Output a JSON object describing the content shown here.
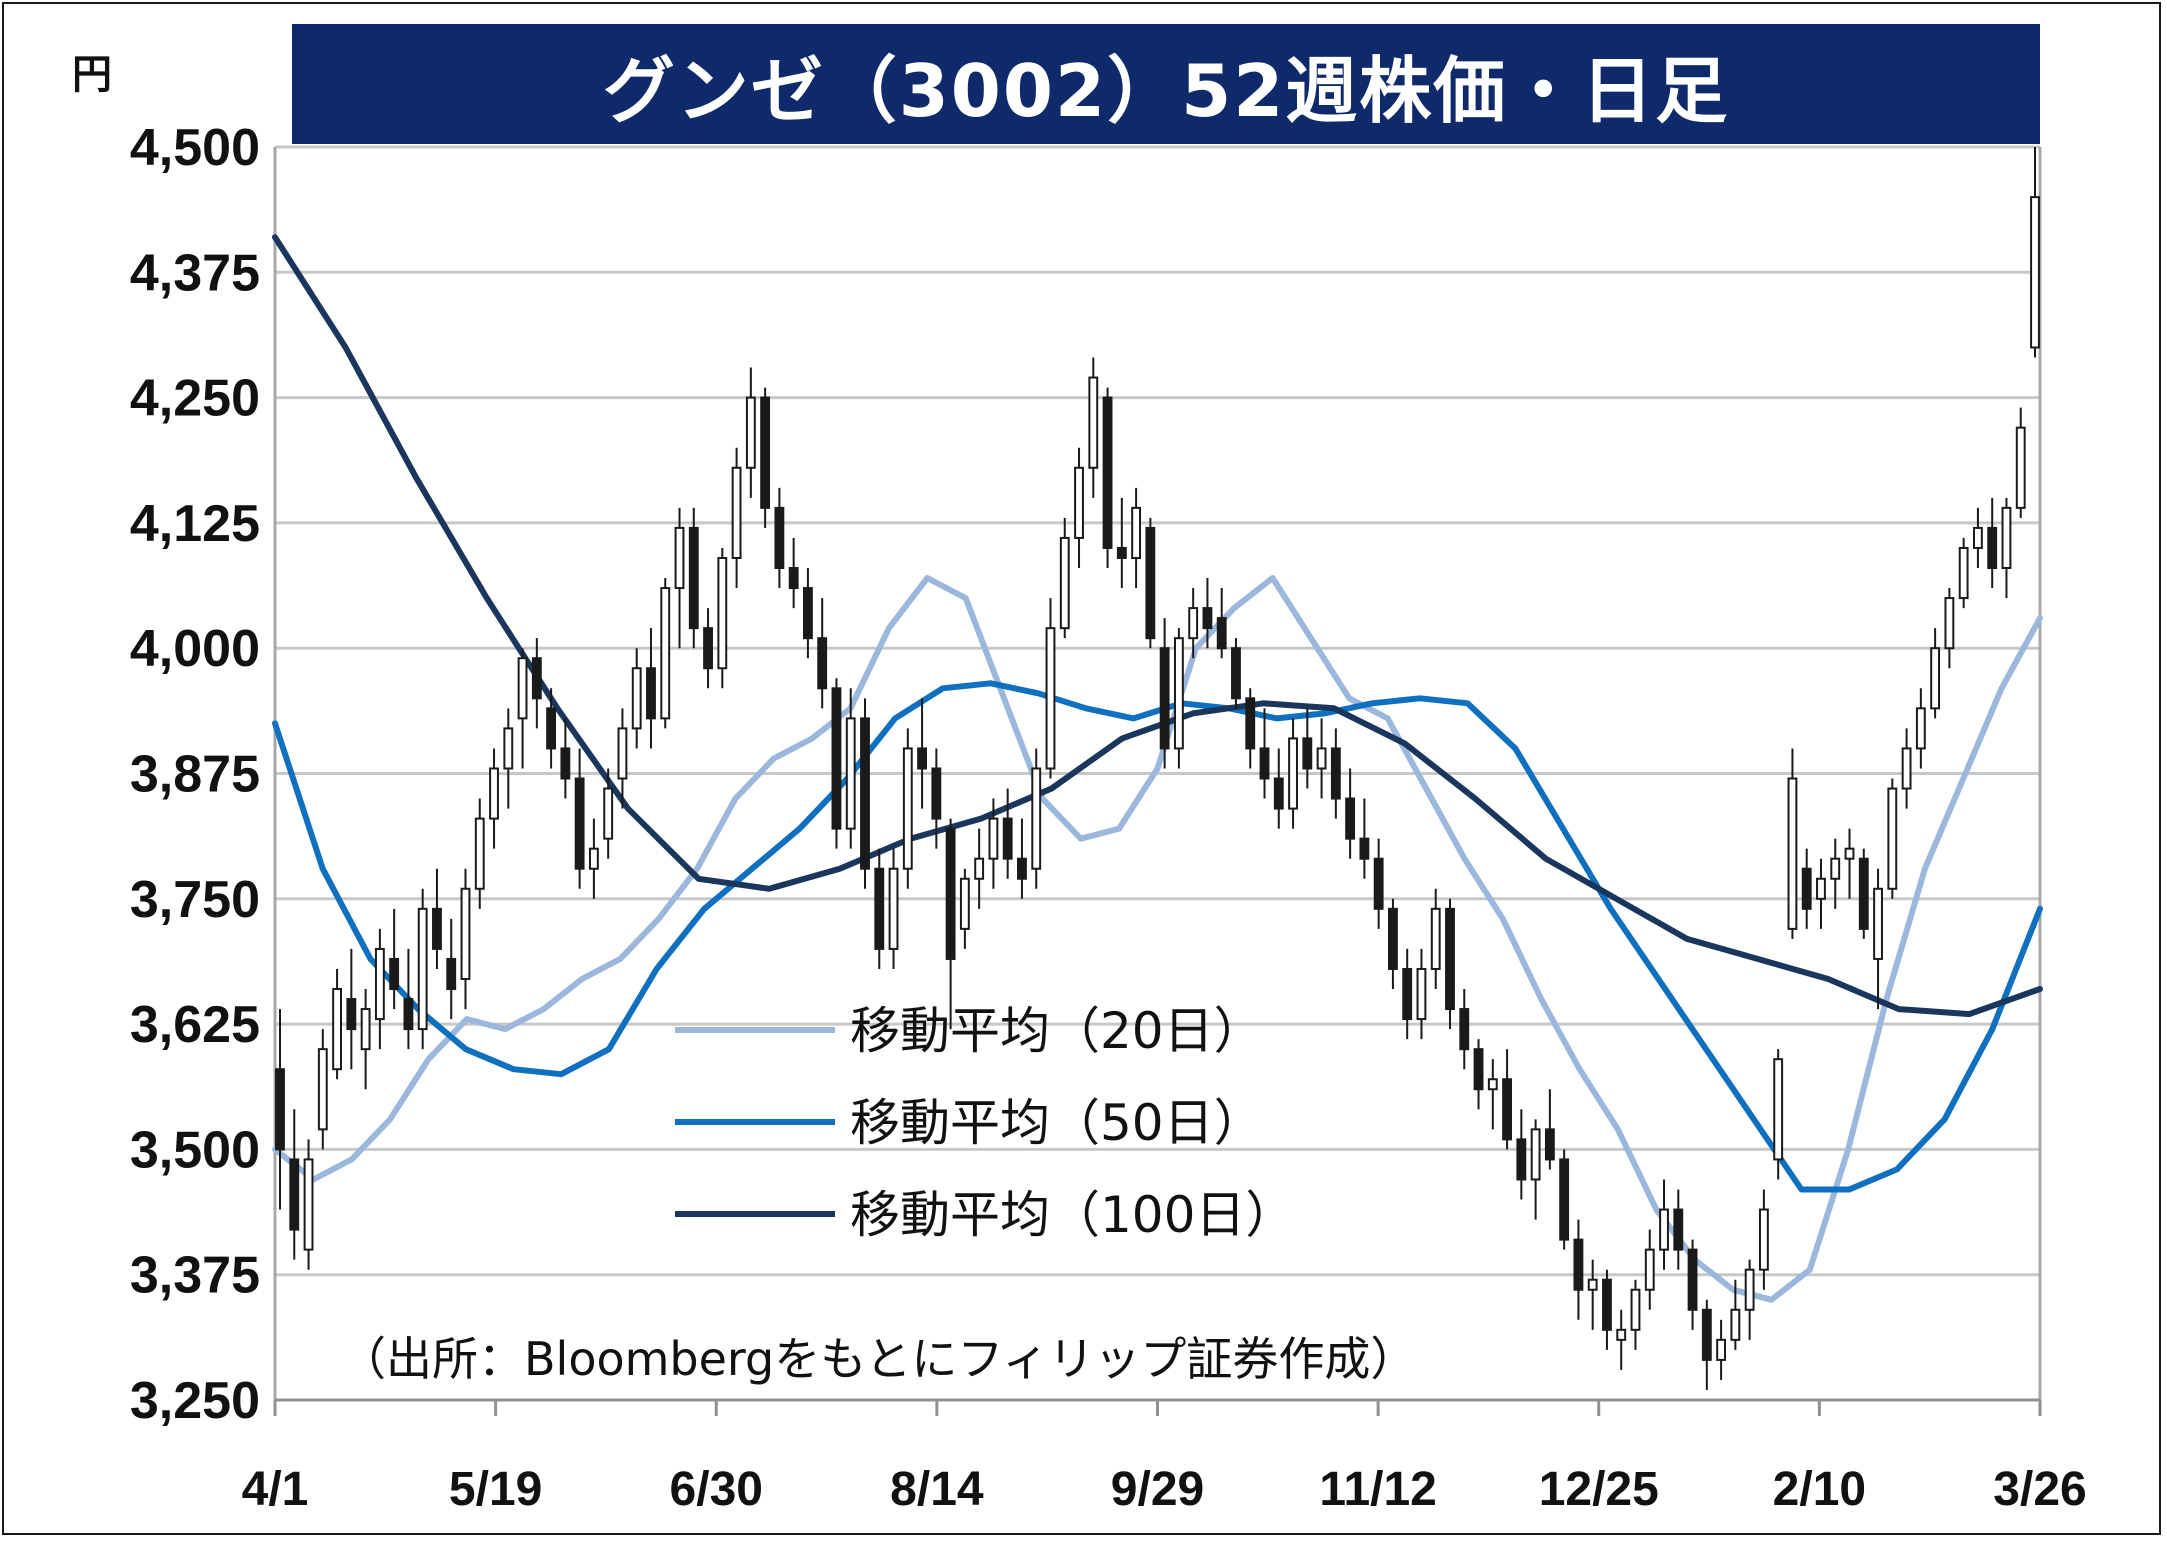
{
  "chart_data": {
    "type": "candlestick",
    "title": "グンゼ（3002）52週株価・日足",
    "unit_label": "円",
    "ylim": [
      3250,
      4500
    ],
    "yticks": [
      3250,
      3375,
      3500,
      3625,
      3750,
      3875,
      4000,
      4125,
      4250,
      4375,
      4500
    ],
    "ytick_labels": [
      "3,250",
      "3,375",
      "3,500",
      "3,625",
      "3,750",
      "3,875",
      "4,000",
      "4,125",
      "4,250",
      "4,375",
      "4,500"
    ],
    "x_labels": [
      "4/1",
      "5/19",
      "6/30",
      "8/14",
      "9/29",
      "11/12",
      "12/25",
      "2/10",
      "3/26"
    ],
    "grid": true,
    "legend_position": "center-left",
    "source_note": "（出所：Bloombergをもとにフィリップ証券作成）",
    "series": [
      {
        "name": "移動平均（20日）",
        "color": "#9bb7dc",
        "values": [
          3500,
          3470,
          3490,
          3530,
          3590,
          3630,
          3620,
          3640,
          3670,
          3690,
          3730,
          3780,
          3850,
          3890,
          3910,
          3940,
          4020,
          4070,
          4050,
          3950,
          3850,
          3810,
          3820,
          3880,
          4000,
          4040,
          4070,
          4010,
          3950,
          3930,
          3860,
          3790,
          3730,
          3650,
          3580,
          3520,
          3440,
          3390,
          3360,
          3350,
          3380,
          3500,
          3650,
          3780,
          3870,
          3960,
          4030
        ]
      },
      {
        "name": "移動平均（50日）",
        "color": "#1070c0",
        "values": [
          3925,
          3780,
          3690,
          3640,
          3600,
          3580,
          3575,
          3600,
          3680,
          3740,
          3780,
          3820,
          3870,
          3930,
          3960,
          3965,
          3955,
          3940,
          3930,
          3945,
          3940,
          3930,
          3935,
          3945,
          3950,
          3945,
          3900,
          3820,
          3740,
          3670,
          3600,
          3530,
          3460,
          3460,
          3480,
          3530,
          3620,
          3740
        ]
      },
      {
        "name": "移動平均（100日）",
        "color": "#1b365d",
        "values": [
          4410,
          4300,
          4170,
          4050,
          3940,
          3840,
          3770,
          3760,
          3780,
          3810,
          3830,
          3860,
          3910,
          3935,
          3945,
          3940,
          3905,
          3850,
          3790,
          3750,
          3710,
          3690,
          3670,
          3640,
          3635,
          3660
        ]
      }
    ],
    "candles": [
      {
        "o": 3580,
        "h": 3640,
        "l": 3440,
        "c": 3500
      },
      {
        "o": 3490,
        "h": 3540,
        "l": 3390,
        "c": 3420
      },
      {
        "o": 3400,
        "h": 3510,
        "l": 3380,
        "c": 3490
      },
      {
        "o": 3520,
        "h": 3620,
        "l": 3500,
        "c": 3600
      },
      {
        "o": 3580,
        "h": 3680,
        "l": 3570,
        "c": 3660
      },
      {
        "o": 3650,
        "h": 3700,
        "l": 3580,
        "c": 3620
      },
      {
        "o": 3600,
        "h": 3660,
        "l": 3560,
        "c": 3640
      },
      {
        "o": 3630,
        "h": 3720,
        "l": 3600,
        "c": 3700
      },
      {
        "o": 3690,
        "h": 3740,
        "l": 3640,
        "c": 3660
      },
      {
        "o": 3650,
        "h": 3700,
        "l": 3600,
        "c": 3620
      },
      {
        "o": 3620,
        "h": 3760,
        "l": 3600,
        "c": 3740
      },
      {
        "o": 3740,
        "h": 3780,
        "l": 3680,
        "c": 3700
      },
      {
        "o": 3690,
        "h": 3730,
        "l": 3630,
        "c": 3660
      },
      {
        "o": 3670,
        "h": 3780,
        "l": 3640,
        "c": 3760
      },
      {
        "o": 3760,
        "h": 3850,
        "l": 3740,
        "c": 3830
      },
      {
        "o": 3830,
        "h": 3900,
        "l": 3800,
        "c": 3880
      },
      {
        "o": 3880,
        "h": 3940,
        "l": 3840,
        "c": 3920
      },
      {
        "o": 3930,
        "h": 4000,
        "l": 3880,
        "c": 3990
      },
      {
        "o": 3990,
        "h": 4010,
        "l": 3920,
        "c": 3950
      },
      {
        "o": 3940,
        "h": 3960,
        "l": 3880,
        "c": 3900
      },
      {
        "o": 3900,
        "h": 3930,
        "l": 3850,
        "c": 3870
      },
      {
        "o": 3870,
        "h": 3900,
        "l": 3760,
        "c": 3780
      },
      {
        "o": 3780,
        "h": 3830,
        "l": 3750,
        "c": 3800
      },
      {
        "o": 3810,
        "h": 3880,
        "l": 3790,
        "c": 3860
      },
      {
        "o": 3870,
        "h": 3940,
        "l": 3840,
        "c": 3920
      },
      {
        "o": 3920,
        "h": 4000,
        "l": 3900,
        "c": 3980
      },
      {
        "o": 3980,
        "h": 4020,
        "l": 3900,
        "c": 3930
      },
      {
        "o": 3930,
        "h": 4070,
        "l": 3920,
        "c": 4060
      },
      {
        "o": 4060,
        "h": 4140,
        "l": 4000,
        "c": 4120
      },
      {
        "o": 4120,
        "h": 4140,
        "l": 4000,
        "c": 4020
      },
      {
        "o": 4020,
        "h": 4040,
        "l": 3960,
        "c": 3980
      },
      {
        "o": 3980,
        "h": 4100,
        "l": 3960,
        "c": 4090
      },
      {
        "o": 4090,
        "h": 4200,
        "l": 4060,
        "c": 4180
      },
      {
        "o": 4180,
        "h": 4280,
        "l": 4150,
        "c": 4250
      },
      {
        "o": 4250,
        "h": 4260,
        "l": 4120,
        "c": 4140
      },
      {
        "o": 4140,
        "h": 4160,
        "l": 4060,
        "c": 4080
      },
      {
        "o": 4080,
        "h": 4110,
        "l": 4040,
        "c": 4060
      },
      {
        "o": 4060,
        "h": 4080,
        "l": 3990,
        "c": 4010
      },
      {
        "o": 4010,
        "h": 4050,
        "l": 3940,
        "c": 3960
      },
      {
        "o": 3960,
        "h": 3970,
        "l": 3800,
        "c": 3820
      },
      {
        "o": 3820,
        "h": 3960,
        "l": 3800,
        "c": 3930
      },
      {
        "o": 3930,
        "h": 3950,
        "l": 3760,
        "c": 3780
      },
      {
        "o": 3780,
        "h": 3800,
        "l": 3680,
        "c": 3700
      },
      {
        "o": 3700,
        "h": 3800,
        "l": 3680,
        "c": 3780
      },
      {
        "o": 3780,
        "h": 3920,
        "l": 3760,
        "c": 3900
      },
      {
        "o": 3900,
        "h": 3950,
        "l": 3840,
        "c": 3880
      },
      {
        "o": 3880,
        "h": 3900,
        "l": 3800,
        "c": 3830
      },
      {
        "o": 3820,
        "h": 3830,
        "l": 3620,
        "c": 3690
      },
      {
        "o": 3720,
        "h": 3780,
        "l": 3700,
        "c": 3770
      },
      {
        "o": 3770,
        "h": 3820,
        "l": 3740,
        "c": 3790
      },
      {
        "o": 3790,
        "h": 3850,
        "l": 3760,
        "c": 3830
      },
      {
        "o": 3830,
        "h": 3860,
        "l": 3770,
        "c": 3790
      },
      {
        "o": 3790,
        "h": 3830,
        "l": 3750,
        "c": 3770
      },
      {
        "o": 3780,
        "h": 3900,
        "l": 3760,
        "c": 3880
      },
      {
        "o": 3880,
        "h": 4050,
        "l": 3870,
        "c": 4020
      },
      {
        "o": 4020,
        "h": 4130,
        "l": 4010,
        "c": 4110
      },
      {
        "o": 4110,
        "h": 4200,
        "l": 4080,
        "c": 4180
      },
      {
        "o": 4180,
        "h": 4290,
        "l": 4150,
        "c": 4270
      },
      {
        "o": 4250,
        "h": 4260,
        "l": 4080,
        "c": 4100
      },
      {
        "o": 4100,
        "h": 4150,
        "l": 4060,
        "c": 4090
      },
      {
        "o": 4090,
        "h": 4160,
        "l": 4060,
        "c": 4140
      },
      {
        "o": 4120,
        "h": 4130,
        "l": 4000,
        "c": 4010
      },
      {
        "o": 4000,
        "h": 4030,
        "l": 3880,
        "c": 3900
      },
      {
        "o": 3900,
        "h": 4020,
        "l": 3880,
        "c": 4010
      },
      {
        "o": 4010,
        "h": 4060,
        "l": 3990,
        "c": 4040
      },
      {
        "o": 4040,
        "h": 4070,
        "l": 4000,
        "c": 4020
      },
      {
        "o": 4030,
        "h": 4060,
        "l": 3990,
        "c": 4000
      },
      {
        "o": 4000,
        "h": 4010,
        "l": 3940,
        "c": 3950
      },
      {
        "o": 3950,
        "h": 3960,
        "l": 3880,
        "c": 3900
      },
      {
        "o": 3900,
        "h": 3940,
        "l": 3850,
        "c": 3870
      },
      {
        "o": 3870,
        "h": 3900,
        "l": 3820,
        "c": 3840
      },
      {
        "o": 3840,
        "h": 3930,
        "l": 3820,
        "c": 3910
      },
      {
        "o": 3910,
        "h": 3940,
        "l": 3860,
        "c": 3880
      },
      {
        "o": 3880,
        "h": 3930,
        "l": 3850,
        "c": 3900
      },
      {
        "o": 3900,
        "h": 3920,
        "l": 3830,
        "c": 3850
      },
      {
        "o": 3850,
        "h": 3880,
        "l": 3790,
        "c": 3810
      },
      {
        "o": 3810,
        "h": 3850,
        "l": 3770,
        "c": 3790
      },
      {
        "o": 3790,
        "h": 3810,
        "l": 3720,
        "c": 3740
      },
      {
        "o": 3740,
        "h": 3750,
        "l": 3660,
        "c": 3680
      },
      {
        "o": 3680,
        "h": 3700,
        "l": 3610,
        "c": 3630
      },
      {
        "o": 3630,
        "h": 3700,
        "l": 3610,
        "c": 3680
      },
      {
        "o": 3680,
        "h": 3760,
        "l": 3660,
        "c": 3740
      },
      {
        "o": 3740,
        "h": 3750,
        "l": 3620,
        "c": 3640
      },
      {
        "o": 3640,
        "h": 3660,
        "l": 3580,
        "c": 3600
      },
      {
        "o": 3600,
        "h": 3610,
        "l": 3540,
        "c": 3560
      },
      {
        "o": 3560,
        "h": 3590,
        "l": 3520,
        "c": 3570
      },
      {
        "o": 3570,
        "h": 3600,
        "l": 3500,
        "c": 3510
      },
      {
        "o": 3510,
        "h": 3540,
        "l": 3450,
        "c": 3470
      },
      {
        "o": 3470,
        "h": 3530,
        "l": 3430,
        "c": 3520
      },
      {
        "o": 3520,
        "h": 3560,
        "l": 3480,
        "c": 3490
      },
      {
        "o": 3490,
        "h": 3500,
        "l": 3400,
        "c": 3410
      },
      {
        "o": 3410,
        "h": 3430,
        "l": 3330,
        "c": 3360
      },
      {
        "o": 3360,
        "h": 3390,
        "l": 3320,
        "c": 3370
      },
      {
        "o": 3370,
        "h": 3380,
        "l": 3300,
        "c": 3320
      },
      {
        "o": 3310,
        "h": 3340,
        "l": 3280,
        "c": 3320
      },
      {
        "o": 3320,
        "h": 3370,
        "l": 3300,
        "c": 3360
      },
      {
        "o": 3360,
        "h": 3420,
        "l": 3340,
        "c": 3400
      },
      {
        "o": 3400,
        "h": 3470,
        "l": 3380,
        "c": 3440
      },
      {
        "o": 3440,
        "h": 3460,
        "l": 3380,
        "c": 3400
      },
      {
        "o": 3400,
        "h": 3410,
        "l": 3320,
        "c": 3340
      },
      {
        "o": 3340,
        "h": 3350,
        "l": 3260,
        "c": 3290
      },
      {
        "o": 3290,
        "h": 3330,
        "l": 3270,
        "c": 3310
      },
      {
        "o": 3310,
        "h": 3370,
        "l": 3300,
        "c": 3340
      },
      {
        "o": 3340,
        "h": 3390,
        "l": 3310,
        "c": 3380
      },
      {
        "o": 3380,
        "h": 3460,
        "l": 3360,
        "c": 3440
      },
      {
        "o": 3490,
        "h": 3600,
        "l": 3470,
        "c": 3590
      },
      {
        "o": 3720,
        "h": 3900,
        "l": 3710,
        "c": 3870
      },
      {
        "o": 3780,
        "h": 3800,
        "l": 3720,
        "c": 3740
      },
      {
        "o": 3750,
        "h": 3790,
        "l": 3720,
        "c": 3770
      },
      {
        "o": 3770,
        "h": 3810,
        "l": 3740,
        "c": 3790
      },
      {
        "o": 3790,
        "h": 3820,
        "l": 3750,
        "c": 3800
      },
      {
        "o": 3790,
        "h": 3800,
        "l": 3710,
        "c": 3720
      },
      {
        "o": 3690,
        "h": 3780,
        "l": 3640,
        "c": 3760
      },
      {
        "o": 3760,
        "h": 3870,
        "l": 3750,
        "c": 3860
      },
      {
        "o": 3860,
        "h": 3920,
        "l": 3840,
        "c": 3900
      },
      {
        "o": 3900,
        "h": 3960,
        "l": 3880,
        "c": 3940
      },
      {
        "o": 3940,
        "h": 4020,
        "l": 3930,
        "c": 4000
      },
      {
        "o": 4000,
        "h": 4060,
        "l": 3980,
        "c": 4050
      },
      {
        "o": 4050,
        "h": 4110,
        "l": 4040,
        "c": 4100
      },
      {
        "o": 4100,
        "h": 4140,
        "l": 4080,
        "c": 4120
      },
      {
        "o": 4120,
        "h": 4150,
        "l": 4060,
        "c": 4080
      },
      {
        "o": 4080,
        "h": 4150,
        "l": 4050,
        "c": 4140
      },
      {
        "o": 4140,
        "h": 4240,
        "l": 4130,
        "c": 4220
      },
      {
        "o": 4300,
        "h": 4500,
        "l": 4290,
        "c": 4450
      }
    ]
  },
  "legend": [
    {
      "label": "移動平均（20日）",
      "color": "#9bb7dc"
    },
    {
      "label": "移動平均（50日）",
      "color": "#1070c0"
    },
    {
      "label": "移動平均（100日）",
      "color": "#1b365d"
    }
  ]
}
